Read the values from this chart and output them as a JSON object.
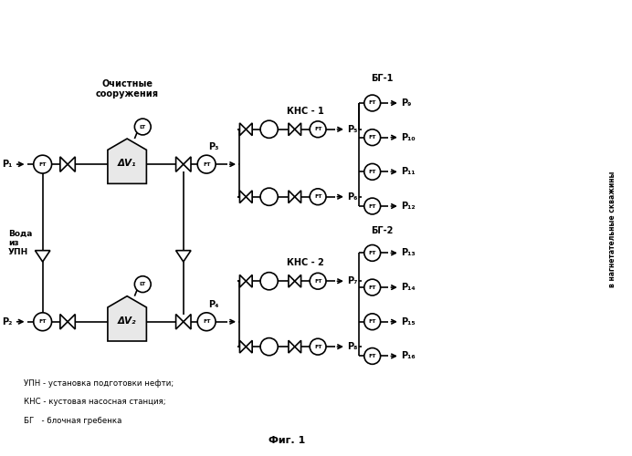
{
  "figsize": [
    6.92,
    5.0
  ],
  "dpi": 100,
  "bg_color": "#ffffff",
  "line_color": "#000000",
  "lw": 1.2,
  "labels": {
    "ochistnye": "Очистные\nсооружения",
    "kns1": "КНС - 1",
    "kns2": "КНС - 2",
    "bg1": "БГ-1",
    "bg2": "БГ-2",
    "voda": "Вода\nиз\nУПН",
    "legend1": "УПН - установка подготовки нефти;",
    "legend2": "КНС - кустовая насосная станция;",
    "legend3": "БГ   - блочная гребенка",
    "fig_caption": "Фиг. 1",
    "right_label": "в нагнетательные скважины"
  },
  "xlim": [
    0,
    10
  ],
  "ylim": [
    0,
    7.2
  ]
}
